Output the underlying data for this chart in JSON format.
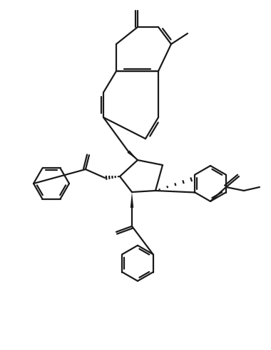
{
  "bg": "#ffffff",
  "lc": "#1a1a1a",
  "lw": 1.6,
  "lw_bold": 3.5,
  "fw": 3.8,
  "fh": 4.92,
  "dpi": 100
}
